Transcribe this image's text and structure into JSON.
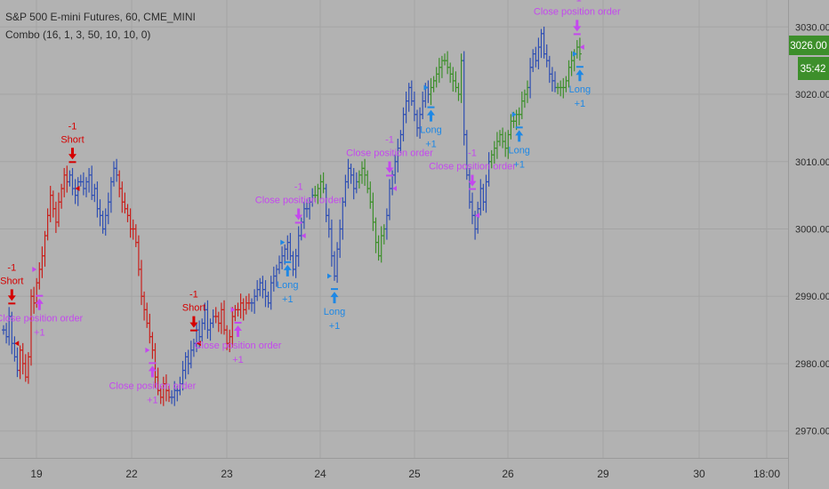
{
  "header": {
    "symbol_title": "S&P 500 E-mini Futures, 60, CME_MINI",
    "indicator_label": "Combo (16, 1, 3, 50, 10, 10, 0)"
  },
  "price_badge": {
    "price": "3026.00",
    "countdown": "35:42",
    "color": "#3d8f2b"
  },
  "colors": {
    "background": "#b2b2b2",
    "grid": "#a4a4a4",
    "bull": "#2f4fb3",
    "bear": "#c8201c",
    "neutral": "#3d8f2b",
    "long_signal": "#1e88e5",
    "short_signal": "#d50000",
    "close_signal": "#c448ee"
  },
  "chart_data": {
    "type": "ohlc",
    "ylim": [
      2966,
      3034
    ],
    "y_ticks": [
      "2970.00",
      "2980.00",
      "2990.00",
      "3000.00",
      "3010.00",
      "3020.00",
      "3030.00"
    ],
    "x_ticks": [
      "19",
      "22",
      "23",
      "24",
      "25",
      "26",
      "29",
      "30",
      "18:00"
    ],
    "bar_segments": [
      {
        "color": "bull",
        "prices": [
          2985,
          2984,
          2987,
          2983,
          2981,
          2979
        ]
      },
      {
        "color": "bear",
        "prices": [
          2982,
          2980,
          2978,
          2981,
          2990,
          2989,
          2992,
          2994,
          2996,
          2999,
          3002,
          3005,
          3003,
          3001,
          3004,
          3006,
          3008,
          3007
        ]
      },
      {
        "color": "bull",
        "prices": [
          3008,
          3006,
          3005,
          3007,
          3007,
          3006,
          3007,
          3008,
          3005,
          3006,
          3003,
          3002,
          3000,
          3002,
          3004,
          3007,
          3009,
          3008
        ]
      },
      {
        "color": "bear",
        "prices": [
          3006,
          3004,
          3003,
          3002,
          3000,
          3000,
          2998,
          2994,
          2990,
          2988,
          2986,
          2984,
          2982,
          2978,
          2976,
          2975,
          2977,
          2976,
          2975
        ]
      },
      {
        "color": "bull",
        "prices": [
          2975,
          2976,
          2976,
          2977,
          2979,
          2981,
          2980,
          2982,
          2983,
          2985,
          2984,
          2986,
          2988,
          2985,
          2986,
          2987
        ]
      },
      {
        "color": "bear",
        "prices": [
          2987,
          2986,
          2988,
          2985,
          2983,
          2984,
          2987,
          2988,
          2988,
          2989,
          2988,
          2989,
          2989
        ]
      },
      {
        "color": "bull",
        "prices": [
          2989,
          2990,
          2991,
          2992,
          2991,
          2990,
          2989,
          2992,
          2993,
          2994,
          2995,
          2996,
          2997,
          2998,
          2996,
          2994,
          2996,
          2999,
          3001,
          3003,
          3003,
          3004,
          3005
        ]
      },
      {
        "color": "neutral",
        "prices": [
          3005,
          3006,
          3007,
          3006
        ]
      },
      {
        "color": "bull",
        "prices": [
          3002,
          3000,
          2996,
          2993,
          2997,
          3000,
          3004,
          3007,
          3009,
          3008,
          3006,
          3007
        ]
      },
      {
        "color": "neutral",
        "prices": [
          3008,
          3009,
          3008,
          3006,
          3004,
          3001,
          2998,
          2996,
          2999,
          3000
        ]
      },
      {
        "color": "bull",
        "prices": [
          3002,
          3006,
          3008,
          3010,
          3012,
          3014,
          3017,
          3019,
          3021,
          3019,
          3017,
          3015,
          3017,
          3019,
          3021,
          3020
        ]
      },
      {
        "color": "neutral",
        "prices": [
          3021,
          3022,
          3023,
          3024,
          3025,
          3025,
          3024,
          3023,
          3022,
          3021,
          3020,
          3025
        ]
      },
      {
        "color": "bull",
        "prices": [
          3014,
          3008,
          3004,
          3002,
          3000,
          3003,
          3006,
          3004,
          3007,
          3010
        ]
      },
      {
        "color": "neutral",
        "prices": [
          3011,
          3012,
          3013,
          3014,
          3013,
          3012,
          3014,
          3016,
          3016,
          3017,
          3017,
          3019,
          3020,
          3021
        ]
      },
      {
        "color": "bull",
        "prices": [
          3024,
          3026,
          3025,
          3027,
          3029,
          3026,
          3025,
          3023,
          3022,
          3021
        ]
      },
      {
        "color": "neutral",
        "prices": [
          3021,
          3021,
          3021,
          3022,
          3024,
          3025,
          3026,
          3027,
          3026
        ]
      }
    ],
    "signals": [
      {
        "kind": "short",
        "bar": 3,
        "label": "Short",
        "qty": "-1"
      },
      {
        "kind": "close_buy",
        "bar": 13,
        "label": "Close position order",
        "qty": "+1"
      },
      {
        "kind": "short",
        "bar": 25,
        "label": "Short",
        "qty": "-1"
      },
      {
        "kind": "close_buy",
        "bar": 54,
        "label": "Close position order",
        "qty": "+1"
      },
      {
        "kind": "short",
        "bar": 69,
        "label": "Short",
        "qty": "-1"
      },
      {
        "kind": "close_buy",
        "bar": 85,
        "label": "Close position order",
        "qty": "+1"
      },
      {
        "kind": "long",
        "bar": 103,
        "label": "Long",
        "qty": "+1"
      },
      {
        "kind": "close_sell",
        "bar": 107,
        "label": "Close position order",
        "qty": "-1"
      },
      {
        "kind": "long",
        "bar": 120,
        "label": "Long",
        "qty": "+1"
      },
      {
        "kind": "close_sell",
        "bar": 140,
        "label": "Close position order",
        "qty": "-1"
      },
      {
        "kind": "long",
        "bar": 155,
        "label": "Long",
        "qty": "+1"
      },
      {
        "kind": "close_sell",
        "bar": 170,
        "label": "Close position order",
        "qty": "-1"
      },
      {
        "kind": "long",
        "bar": 187,
        "label": "Long",
        "qty": "+1"
      },
      {
        "kind": "close_sell",
        "bar": 208,
        "label": "Close position order",
        "qty": "-1"
      },
      {
        "kind": "long",
        "bar": 221,
        "label": "Long",
        "qty": "+1"
      }
    ]
  }
}
